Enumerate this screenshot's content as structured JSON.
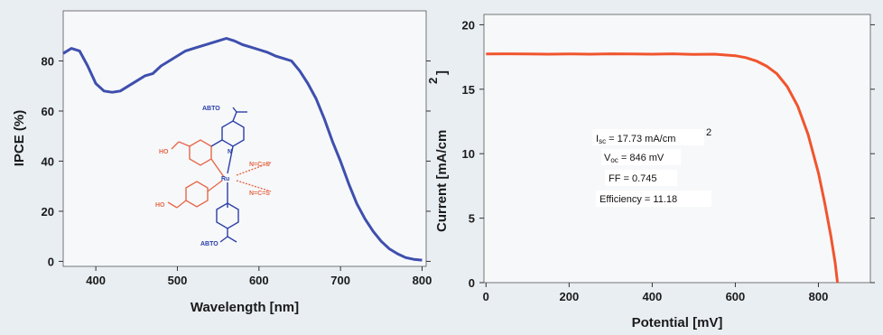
{
  "chart_data": [
    {
      "type": "line",
      "series": [
        {
          "color": "#3e4fae",
          "x": [
            360,
            370,
            380,
            390,
            400,
            410,
            420,
            430,
            440,
            450,
            460,
            470,
            480,
            490,
            500,
            510,
            520,
            530,
            540,
            550,
            560,
            570,
            580,
            590,
            600,
            610,
            620,
            630,
            640,
            650,
            660,
            670,
            680,
            690,
            700,
            710,
            720,
            730,
            740,
            750,
            760,
            770,
            780,
            790,
            800
          ],
          "y": [
            83,
            85,
            84,
            78,
            71,
            68,
            67.5,
            68,
            70,
            72,
            74,
            75,
            78,
            80,
            82,
            84,
            85,
            86,
            87,
            88,
            89,
            88,
            86.5,
            85.5,
            84.5,
            83.5,
            82,
            81,
            80,
            76,
            71,
            65,
            57,
            48,
            40,
            31,
            23,
            17,
            12,
            8,
            5,
            3,
            1.5,
            0.8,
            0.5
          ]
        }
      ],
      "xlabel": "Wavelength [nm]",
      "ylabel": "IPCE (%)",
      "xlim": [
        360,
        805
      ],
      "ylim": [
        -2,
        100
      ],
      "xticks": [
        "400",
        "500",
        "600",
        "700",
        "800"
      ],
      "yticks": [
        "0",
        "20",
        "40",
        "60",
        "80"
      ],
      "grid": false,
      "inset": {
        "labels": {
          "abto_top": "ABTO",
          "abto_bottom": "ABTO",
          "ho_top": "HO",
          "ho_bottom": "HO",
          "ru": "Ru",
          "n": "N",
          "ncs_1": "N=C=S",
          "ncs_2": "N=C=S"
        }
      }
    },
    {
      "type": "line",
      "series": [
        {
          "color": "#f0552e",
          "x": [
            0,
            50,
            100,
            150,
            200,
            250,
            300,
            350,
            400,
            450,
            500,
            550,
            600,
            625,
            650,
            675,
            700,
            725,
            750,
            775,
            800,
            815,
            830,
            840,
            846
          ],
          "y": [
            17.73,
            17.75,
            17.74,
            17.72,
            17.74,
            17.72,
            17.75,
            17.73,
            17.72,
            17.75,
            17.7,
            17.72,
            17.6,
            17.45,
            17.2,
            16.8,
            16.2,
            15.2,
            13.7,
            11.5,
            8.5,
            6.2,
            3.6,
            1.6,
            0
          ]
        }
      ],
      "xlabel": "Potential [mV]",
      "ylabel": "Current [mA/cm",
      "ylabel_sup": "2",
      "ylabel_close": "]",
      "xlim": [
        -5,
        925
      ],
      "ylim": [
        0,
        20.8
      ],
      "xticks": [
        "0",
        "200",
        "400",
        "600",
        "800"
      ],
      "yticks": [
        "0",
        "5",
        "10",
        "15",
        "20"
      ],
      "grid": false,
      "annotations": {
        "isc_prefix": "I",
        "isc_sub": "sc",
        "isc_text": " = 17.73 mA/cm",
        "isc_sup": "2",
        "voc_prefix": "V",
        "voc_sub": "oc",
        "voc_text": " = 846 mV",
        "ff": "FF = 0.745",
        "efficiency": "Efficiency = 11.18"
      }
    }
  ]
}
